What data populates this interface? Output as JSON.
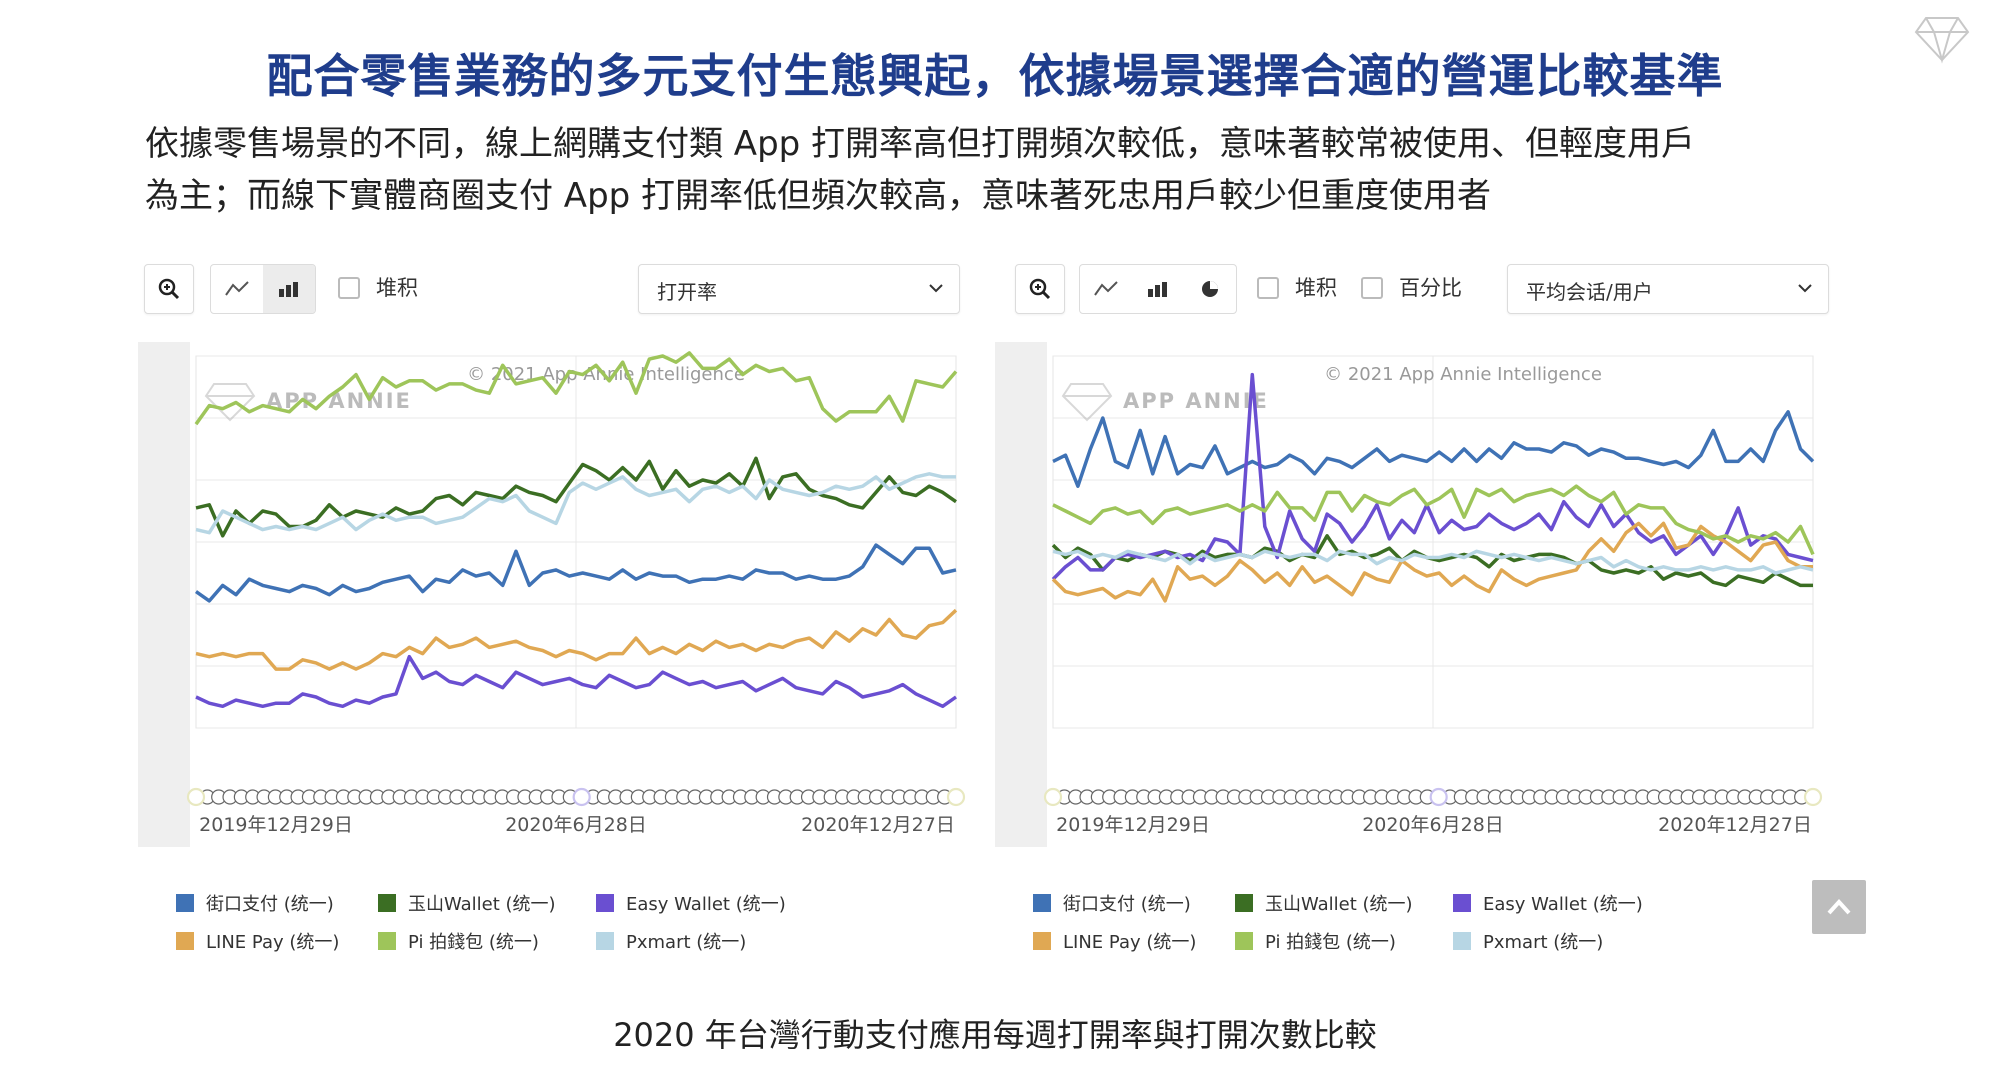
{
  "title": "配合零售業務的多元支付生態興起，依據場景選擇合適的營運比較基準",
  "subtitle_line1": "依據零售場景的不同，線上網購支付類 App 打開率高但打開頻次較低，意味著較常被使用、但輕度用戶",
  "subtitle_line2": "為主；而線下實體商圈支付 App 打開率低但頻次較高，意味著死忠用戶較少但重度使用者",
  "caption": "2020 年台灣行動支付應用每週打開率與打開次數比較",
  "colors": {
    "jiekou": "#3f72b5",
    "yushan": "#3b6e23",
    "easywallet": "#6a4fd1",
    "linepay": "#e0a853",
    "pi": "#9ec55a",
    "pxmart": "#b7d6e4"
  },
  "panels": [
    {
      "stack_label": "堆积",
      "metric_label": "打开率",
      "percent_label": null,
      "watermark": "© 2021 App Annie Intelligence",
      "logo_text": "APP ANNIE",
      "x_tick_labels": [
        "2019年12月29日",
        "2020年6月28日",
        "2020年12月27日"
      ]
    },
    {
      "stack_label": "堆积",
      "metric_label": "平均会话/用户",
      "percent_label": "百分比",
      "watermark": "© 2021 App Annie Intelligence",
      "logo_text": "APP ANNIE",
      "x_tick_labels": [
        "2019年12月29日",
        "2020年6月28日",
        "2020年12月27日"
      ]
    }
  ],
  "legend": [
    {
      "label": "街口支付 (统一)",
      "color": "#3f72b5"
    },
    {
      "label": "玉山Wallet (统一)",
      "color": "#3b6e23"
    },
    {
      "label": "Easy Wallet (统一)",
      "color": "#6a4fd1"
    },
    {
      "label": "LINE Pay (统一)",
      "color": "#e0a853"
    },
    {
      "label": "Pi 拍錢包 (统一)",
      "color": "#9ec55a"
    },
    {
      "label": "Pxmart (统一)",
      "color": "#b7d6e4"
    }
  ],
  "chart_data": [
    {
      "type": "line",
      "title": "",
      "x_range": [
        "2019-12-29",
        "2020-12-27"
      ],
      "ylim": [
        0,
        6
      ],
      "grid": true,
      "legend_position": "bottom",
      "series": [
        {
          "name": "街口支付 (统一)",
          "values": [
            2.2,
            2.05,
            2.3,
            2.15,
            2.4,
            2.3,
            2.25,
            2.2,
            2.3,
            2.25,
            2.15,
            2.3,
            2.2,
            2.25,
            2.35,
            2.4,
            2.45,
            2.2,
            2.4,
            2.35,
            2.55,
            2.45,
            2.5,
            2.3,
            2.85,
            2.3,
            2.5,
            2.55,
            2.45,
            2.5,
            2.45,
            2.4,
            2.55,
            2.4,
            2.5,
            2.45,
            2.45,
            2.35,
            2.4,
            2.4,
            2.45,
            2.4,
            2.55,
            2.5,
            2.5,
            2.4,
            2.45,
            2.4,
            2.4,
            2.45,
            2.6,
            2.95,
            2.8,
            2.65,
            2.9,
            2.9,
            2.5,
            2.55
          ]
        },
        {
          "name": "玉山Wallet (统一)",
          "values": [
            3.55,
            3.6,
            3.1,
            3.5,
            3.3,
            3.5,
            3.45,
            3.25,
            3.25,
            3.35,
            3.6,
            3.4,
            3.5,
            3.45,
            3.4,
            3.55,
            3.45,
            3.5,
            3.7,
            3.75,
            3.6,
            3.8,
            3.75,
            3.7,
            3.9,
            3.8,
            3.75,
            3.65,
            3.95,
            4.25,
            4.15,
            4.0,
            4.2,
            4.0,
            4.3,
            3.85,
            4.15,
            3.9,
            4.0,
            3.95,
            4.1,
            3.9,
            4.35,
            3.7,
            4.05,
            4.1,
            3.85,
            3.75,
            3.7,
            3.6,
            3.55,
            3.8,
            4.05,
            3.8,
            3.75,
            3.9,
            3.8,
            3.65
          ]
        },
        {
          "name": "Easy Wallet (统一)",
          "values": [
            0.5,
            0.4,
            0.35,
            0.45,
            0.4,
            0.35,
            0.4,
            0.4,
            0.55,
            0.5,
            0.4,
            0.35,
            0.45,
            0.4,
            0.5,
            0.55,
            1.15,
            0.8,
            0.9,
            0.75,
            0.7,
            0.85,
            0.75,
            0.65,
            0.9,
            0.8,
            0.7,
            0.75,
            0.8,
            0.7,
            0.65,
            0.85,
            0.75,
            0.65,
            0.7,
            0.9,
            0.8,
            0.7,
            0.75,
            0.65,
            0.7,
            0.75,
            0.6,
            0.7,
            0.8,
            0.65,
            0.6,
            0.55,
            0.75,
            0.65,
            0.5,
            0.55,
            0.6,
            0.7,
            0.55,
            0.45,
            0.35,
            0.5
          ]
        },
        {
          "name": "LINE Pay (统一)",
          "values": [
            1.2,
            1.15,
            1.2,
            1.15,
            1.2,
            1.2,
            0.95,
            0.95,
            1.1,
            1.05,
            0.95,
            1.05,
            0.95,
            1.05,
            1.2,
            1.15,
            1.3,
            1.2,
            1.45,
            1.3,
            1.35,
            1.45,
            1.3,
            1.35,
            1.4,
            1.3,
            1.25,
            1.15,
            1.25,
            1.2,
            1.1,
            1.2,
            1.2,
            1.45,
            1.2,
            1.3,
            1.2,
            1.35,
            1.25,
            1.4,
            1.3,
            1.35,
            1.25,
            1.35,
            1.3,
            1.4,
            1.45,
            1.3,
            1.55,
            1.4,
            1.6,
            1.5,
            1.75,
            1.5,
            1.45,
            1.65,
            1.7,
            1.9
          ]
        },
        {
          "name": "Pi 拍錢包 (统一)",
          "values": [
            4.9,
            5.2,
            5.15,
            5.25,
            5.1,
            5.2,
            5.15,
            5.1,
            5.3,
            5.15,
            5.35,
            5.5,
            5.7,
            5.3,
            5.65,
            5.5,
            5.6,
            5.6,
            5.45,
            5.55,
            5.55,
            5.45,
            5.4,
            5.85,
            5.55,
            5.6,
            5.65,
            5.4,
            5.75,
            5.7,
            5.85,
            5.6,
            5.9,
            5.4,
            5.95,
            6.0,
            5.9,
            6.05,
            5.8,
            5.8,
            5.95,
            5.7,
            5.85,
            5.75,
            5.8,
            5.6,
            5.65,
            5.15,
            4.95,
            5.1,
            5.1,
            5.1,
            5.35,
            4.95,
            5.6,
            5.55,
            5.5,
            5.75
          ]
        },
        {
          "name": "Pxmart (统一)",
          "values": [
            3.2,
            3.15,
            3.5,
            3.4,
            3.3,
            3.2,
            3.25,
            3.2,
            3.25,
            3.2,
            3.3,
            3.4,
            3.2,
            3.35,
            3.45,
            3.35,
            3.4,
            3.4,
            3.3,
            3.35,
            3.4,
            3.55,
            3.7,
            3.65,
            3.75,
            3.5,
            3.4,
            3.3,
            3.8,
            3.95,
            3.85,
            3.95,
            4.05,
            3.85,
            3.75,
            3.8,
            3.85,
            3.65,
            3.85,
            3.9,
            3.8,
            3.9,
            3.7,
            4.0,
            3.85,
            3.8,
            3.75,
            3.8,
            3.9,
            3.85,
            3.9,
            4.05,
            3.85,
            3.95,
            4.05,
            4.1,
            4.05,
            4.05
          ]
        }
      ]
    },
    {
      "type": "line",
      "title": "",
      "x_range": [
        "2019-12-29",
        "2020-12-27"
      ],
      "ylim": [
        0,
        6
      ],
      "grid": true,
      "legend_position": "bottom",
      "series": [
        {
          "name": "街口支付 (统一)",
          "values": [
            4.3,
            4.4,
            3.9,
            4.5,
            5.0,
            4.3,
            4.2,
            4.8,
            4.1,
            4.7,
            4.1,
            4.25,
            4.2,
            4.55,
            4.1,
            4.2,
            4.3,
            4.2,
            4.25,
            4.4,
            4.3,
            4.1,
            4.35,
            4.3,
            4.2,
            4.35,
            4.5,
            4.3,
            4.4,
            4.35,
            4.3,
            4.45,
            4.3,
            4.5,
            4.3,
            4.5,
            4.35,
            4.6,
            4.5,
            4.5,
            4.45,
            4.6,
            4.55,
            4.4,
            4.5,
            4.45,
            4.35,
            4.35,
            4.3,
            4.25,
            4.3,
            4.2,
            4.4,
            4.8,
            4.3,
            4.3,
            4.5,
            4.3,
            4.8,
            5.1,
            4.5,
            4.3
          ]
        },
        {
          "name": "玉山Wallet (统一)",
          "values": [
            2.95,
            2.75,
            2.9,
            2.8,
            2.55,
            2.75,
            2.7,
            2.8,
            2.75,
            2.85,
            2.8,
            2.7,
            2.85,
            2.75,
            2.8,
            2.8,
            2.75,
            2.9,
            2.85,
            2.7,
            2.8,
            2.75,
            3.1,
            2.8,
            2.85,
            2.75,
            2.8,
            2.9,
            2.7,
            2.85,
            2.75,
            2.7,
            2.75,
            2.8,
            2.75,
            2.6,
            2.8,
            2.7,
            2.75,
            2.8,
            2.8,
            2.75,
            2.65,
            2.7,
            2.55,
            2.5,
            2.55,
            2.5,
            2.6,
            2.4,
            2.5,
            2.45,
            2.5,
            2.35,
            2.3,
            2.45,
            2.4,
            2.35,
            2.5,
            2.4,
            2.3,
            2.3
          ]
        },
        {
          "name": "Easy Wallet (统一)",
          "values": [
            2.4,
            2.6,
            2.75,
            2.55,
            2.55,
            2.75,
            2.8,
            2.75,
            2.8,
            2.85,
            2.75,
            2.8,
            2.7,
            3.05,
            3.0,
            2.8,
            5.7,
            3.25,
            2.75,
            3.5,
            3.05,
            2.85,
            3.45,
            3.3,
            3.0,
            3.25,
            3.6,
            3.05,
            3.35,
            3.15,
            3.6,
            3.15,
            3.35,
            3.2,
            3.25,
            3.45,
            3.3,
            3.2,
            3.3,
            3.45,
            3.2,
            3.65,
            3.4,
            3.25,
            3.6,
            3.25,
            3.45,
            3.15,
            3.0,
            3.1,
            2.8,
            2.95,
            3.1,
            2.8,
            3.1,
            3.55,
            2.95,
            3.1,
            3.05,
            2.8,
            2.75,
            2.7
          ]
        },
        {
          "name": "LINE Pay (统一)",
          "values": [
            2.4,
            2.2,
            2.15,
            2.2,
            2.25,
            2.1,
            2.2,
            2.15,
            2.4,
            2.05,
            2.6,
            2.4,
            2.45,
            2.3,
            2.45,
            2.7,
            2.55,
            2.35,
            2.5,
            2.3,
            2.6,
            2.35,
            2.45,
            2.3,
            2.15,
            2.5,
            2.4,
            2.35,
            2.7,
            2.55,
            2.45,
            2.5,
            2.3,
            2.45,
            2.3,
            2.2,
            2.55,
            2.4,
            2.3,
            2.4,
            2.45,
            2.5,
            2.55,
            2.85,
            3.05,
            2.85,
            3.15,
            3.3,
            3.1,
            3.3,
            2.9,
            2.95,
            3.25,
            3.1,
            3.0,
            2.85,
            2.7,
            2.95,
            3.0,
            2.7,
            2.6,
            2.6
          ]
        },
        {
          "name": "Pi 拍錢包 (统一)",
          "values": [
            3.6,
            3.5,
            3.4,
            3.3,
            3.5,
            3.55,
            3.45,
            3.5,
            3.3,
            3.5,
            3.55,
            3.45,
            3.5,
            3.55,
            3.6,
            3.5,
            3.6,
            3.5,
            3.8,
            3.55,
            3.55,
            3.35,
            3.8,
            3.8,
            3.5,
            3.75,
            3.65,
            3.6,
            3.75,
            3.85,
            3.6,
            3.7,
            3.85,
            3.4,
            3.85,
            3.75,
            3.85,
            3.65,
            3.75,
            3.8,
            3.85,
            3.75,
            3.9,
            3.75,
            3.65,
            3.8,
            3.45,
            3.6,
            3.55,
            3.55,
            3.3,
            3.2,
            3.15,
            3.05,
            3.1,
            3.0,
            3.1,
            3.05,
            3.15,
            3.0,
            3.25,
            2.8
          ]
        },
        {
          "name": "Pxmart (统一)",
          "values": [
            2.85,
            2.8,
            2.85,
            2.75,
            2.8,
            2.75,
            2.85,
            2.8,
            2.75,
            2.7,
            2.8,
            2.65,
            2.8,
            2.7,
            2.75,
            2.8,
            2.75,
            2.85,
            2.8,
            2.75,
            2.8,
            2.8,
            2.7,
            2.85,
            2.8,
            2.8,
            2.65,
            2.75,
            2.7,
            2.8,
            2.75,
            2.75,
            2.8,
            2.75,
            2.85,
            2.8,
            2.75,
            2.8,
            2.75,
            2.7,
            2.75,
            2.7,
            2.65,
            2.7,
            2.75,
            2.6,
            2.7,
            2.6,
            2.55,
            2.6,
            2.55,
            2.55,
            2.6,
            2.55,
            2.6,
            2.55,
            2.55,
            2.6,
            2.5,
            2.55,
            2.6,
            2.55
          ]
        }
      ]
    }
  ]
}
